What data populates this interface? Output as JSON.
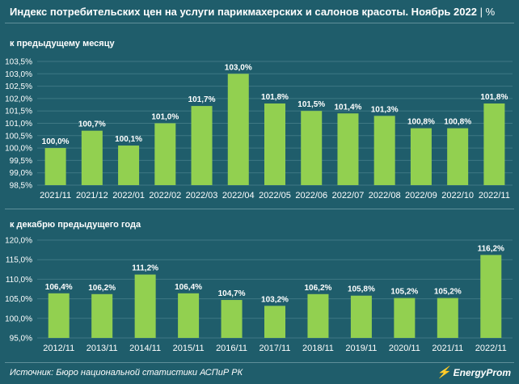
{
  "title": "Индекс потребительских цен на услуги парикмахерских и салонов красоты. Ноябрь 2022",
  "title_unit": "%",
  "source": "Источник: Бюро национальной статистики АСПиР РК",
  "logo_text": "EnergyProm",
  "colors": {
    "background": "#1f5d6b",
    "bar": "#92d050",
    "grid": "#3f7884",
    "text": "#ffffff"
  },
  "chart_data": [
    {
      "type": "bar",
      "title": "к предыдущему месяцу",
      "categories": [
        "2021/11",
        "2021/12",
        "2022/01",
        "2022/02",
        "2022/03",
        "2022/04",
        "2022/05",
        "2022/06",
        "2022/07",
        "2022/08",
        "2022/09",
        "2022/10",
        "2022/11"
      ],
      "values": [
        100.0,
        100.7,
        100.1,
        101.0,
        101.7,
        103.0,
        101.8,
        101.5,
        101.4,
        101.3,
        100.8,
        100.8,
        101.8
      ],
      "value_labels": [
        "100,0%",
        "100,7%",
        "100,1%",
        "101,0%",
        "101,7%",
        "103,0%",
        "101,8%",
        "101,5%",
        "101,4%",
        "101,3%",
        "100,8%",
        "100,8%",
        "101,8%"
      ],
      "ylim": [
        98.5,
        103.5
      ],
      "yticks": [
        98.5,
        99.0,
        99.5,
        100.0,
        100.5,
        101.0,
        101.5,
        102.0,
        102.5,
        103.0,
        103.5
      ],
      "ytick_labels": [
        "98,5%",
        "99,0%",
        "99,5%",
        "100,0%",
        "100,5%",
        "101,0%",
        "101,5%",
        "102,0%",
        "102,5%",
        "103,0%",
        "103,5%"
      ],
      "grid": true
    },
    {
      "type": "bar",
      "title": "к декабрю предыдущего года",
      "categories": [
        "2012/11",
        "2013/11",
        "2014/11",
        "2015/11",
        "2016/11",
        "2017/11",
        "2018/11",
        "2019/11",
        "2020/11",
        "2021/11",
        "2022/11"
      ],
      "values": [
        106.4,
        106.2,
        111.2,
        106.4,
        104.7,
        103.2,
        106.2,
        105.8,
        105.2,
        105.2,
        116.2
      ],
      "value_labels": [
        "106,4%",
        "106,2%",
        "111,2%",
        "106,4%",
        "104,7%",
        "103,2%",
        "106,2%",
        "105,8%",
        "105,2%",
        "105,2%",
        "116,2%"
      ],
      "ylim": [
        95.0,
        120.0
      ],
      "yticks": [
        95.0,
        100.0,
        105.0,
        110.0,
        115.0,
        120.0
      ],
      "ytick_labels": [
        "95,0%",
        "100,0%",
        "105,0%",
        "110,0%",
        "115,0%",
        "120,0%"
      ],
      "grid": true
    }
  ]
}
